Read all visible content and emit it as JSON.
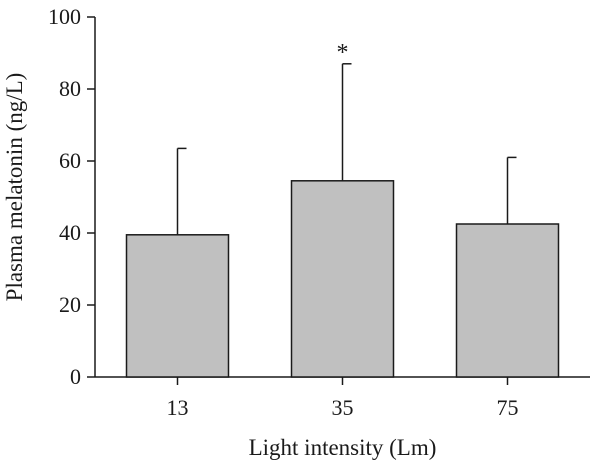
{
  "chart_data": {
    "type": "bar",
    "title": "",
    "xlabel": "Light intensity (Lm)",
    "ylabel": "Plasma melatonin (ng/L)",
    "categories": [
      "13",
      "35",
      "75"
    ],
    "values": [
      39.5,
      54.5,
      42.5
    ],
    "error_upper": [
      63.5,
      87.0,
      61.0
    ],
    "annotations": [
      "",
      "*",
      ""
    ],
    "ylim": [
      0,
      100
    ],
    "yticks": [
      0,
      20,
      40,
      60,
      80,
      100
    ],
    "bar_color": "#c0c0c0",
    "edge_color": "#1a1a1a",
    "grid": false,
    "legend": false
  }
}
